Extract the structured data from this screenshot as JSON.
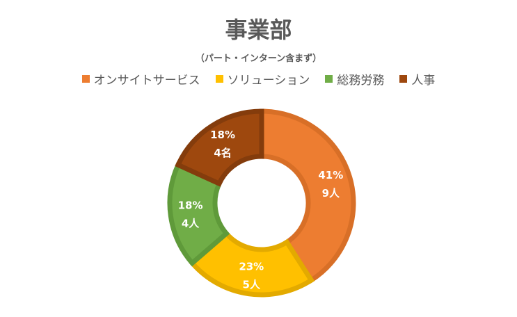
{
  "chart_data": {
    "type": "pie",
    "title": "事業部",
    "subtitle": "（パート・インターン含まず）",
    "legend_position": "top",
    "donut": true,
    "categories": [
      "オンサイトサービス",
      "ソリューション",
      "総務労務",
      "人事"
    ],
    "values": [
      9,
      5,
      4,
      4
    ],
    "percent_labels": [
      "41%",
      "23%",
      "18%",
      "18%"
    ],
    "count_labels": [
      "9人",
      "5人",
      "4人",
      "4名"
    ],
    "colors": [
      "#ED7D31",
      "#FFC000",
      "#70AD47",
      "#9E480E"
    ],
    "border_colors": [
      "#D86F27",
      "#E3AA00",
      "#5F9A3A",
      "#843C0C"
    ]
  }
}
